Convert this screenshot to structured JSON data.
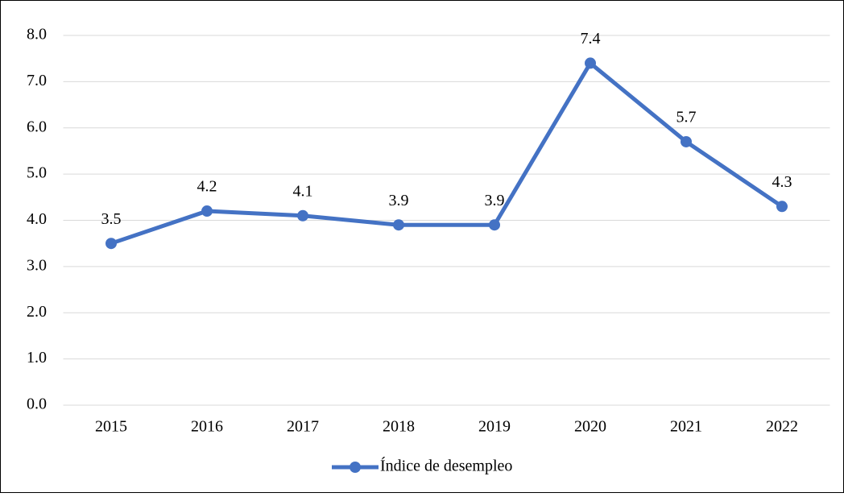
{
  "chart_data": {
    "type": "line",
    "categories": [
      "2015",
      "2016",
      "2017",
      "2018",
      "2019",
      "2020",
      "2021",
      "2022"
    ],
    "series": [
      {
        "name": "Índice de desempleo",
        "color": "#4472c4",
        "values": [
          3.5,
          4.2,
          4.1,
          3.9,
          3.9,
          7.4,
          5.7,
          4.3
        ]
      }
    ],
    "ylim": [
      0,
      8
    ],
    "yticks": [
      {
        "value": 0,
        "label": "0.0"
      },
      {
        "value": 1,
        "label": "1.0"
      },
      {
        "value": 2,
        "label": "2.0"
      },
      {
        "value": 3,
        "label": "3.0"
      },
      {
        "value": 4,
        "label": "4.0"
      },
      {
        "value": 5,
        "label": "5.0"
      },
      {
        "value": 6,
        "label": "6.0"
      },
      {
        "value": 7,
        "label": "7.0"
      },
      {
        "value": 8,
        "label": "8.0"
      }
    ],
    "grid": true,
    "legend": "bottom"
  }
}
